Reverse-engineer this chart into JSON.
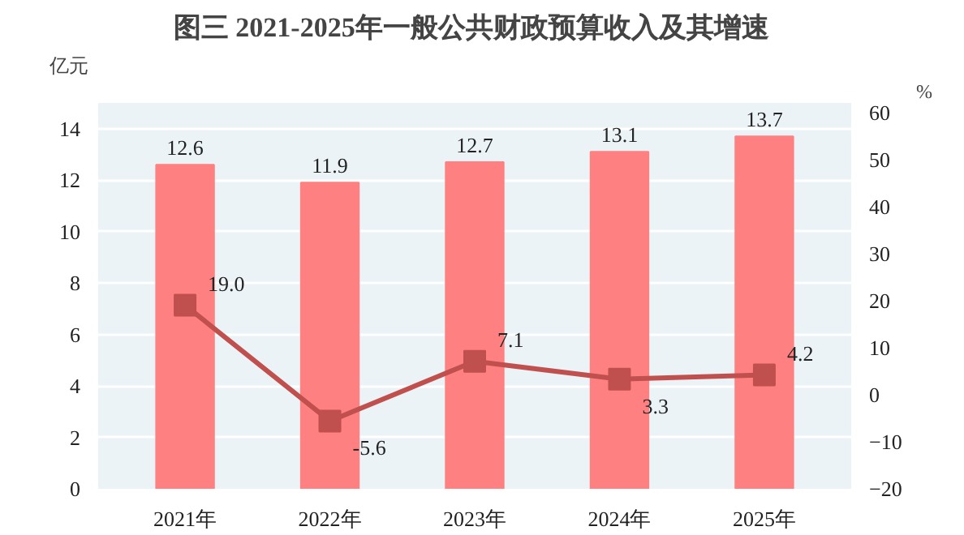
{
  "chart_data": {
    "type": "bar",
    "title": "图三  2021-2025年一般公共财政预算收入及其增速",
    "ylabel": "亿元",
    "y2label": "%",
    "categories": [
      "2021年",
      "2022年",
      "2023年",
      "2024年",
      "2025年"
    ],
    "series": [
      {
        "color": "#ff8080",
        "values": [
          12.6,
          11.9,
          12.7,
          13.1,
          13.7
        ]
      },
      {
        "type": "line",
        "axis": "y2",
        "color": "#c0504d",
        "marker": "square",
        "values": [
          19.0,
          -5.6,
          7.1,
          3.3,
          4.2
        ],
        "value_labels": [
          "19.0",
          "-5.6",
          "7.1",
          "3.3",
          "4.2"
        ]
      }
    ],
    "ylim": [
      0,
      15
    ],
    "yticks": [
      0,
      2,
      4,
      6,
      8,
      10,
      12,
      14
    ],
    "y2lim": [
      -20,
      62
    ],
    "y2ticks": [
      -20,
      -10,
      0,
      10,
      20,
      30,
      40,
      50,
      60
    ],
    "grid": "y",
    "data_labels": true
  }
}
